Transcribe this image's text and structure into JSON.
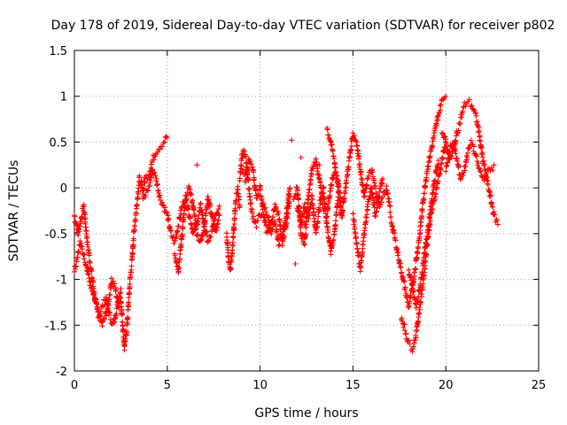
{
  "chart_data": {
    "type": "scatter",
    "title": "Day 178 of 2019, Sidereal Day-to-day VTEC variation (SDTVAR) for receiver p802",
    "xlabel": "GPS time / hours",
    "ylabel": "SDTVAR / TECUs",
    "xlim": [
      0,
      25
    ],
    "ylim": [
      -2,
      1.5
    ],
    "xticks": [
      0,
      5,
      10,
      15,
      20,
      25
    ],
    "xtick_labels": [
      "0",
      "5",
      "10",
      "15",
      "20",
      "25"
    ],
    "yticks": [
      -2,
      -1.5,
      -1,
      -0.5,
      0,
      0.5,
      1,
      1.5
    ],
    "ytick_labels": [
      "-2",
      "-1.5",
      "-1",
      "-0.5",
      "0",
      "0.5",
      "1",
      "1.5"
    ],
    "grid": true,
    "marker": "+",
    "color": "#ff0000",
    "series": [
      {
        "name": "SDTVAR",
        "tracks": [
          {
            "x": [
              0.0,
              0.2,
              0.4,
              0.5,
              0.7,
              0.9,
              1.1,
              1.3,
              1.5,
              1.7,
              1.9,
              2.1,
              2.3,
              2.5
            ],
            "y": [
              -0.3,
              -0.5,
              -0.3,
              -0.2,
              -0.6,
              -0.9,
              -1.2,
              -1.4,
              -1.3,
              -1.2,
              -1.4,
              -1.5,
              -1.3,
              -1.1
            ]
          },
          {
            "x": [
              0.0,
              0.3,
              0.6,
              0.9,
              1.2,
              1.5,
              1.8,
              2.0,
              2.2,
              2.4
            ],
            "y": [
              -0.9,
              -0.6,
              -0.8,
              -1.1,
              -1.3,
              -1.5,
              -1.3,
              -1.0,
              -1.1,
              -1.3
            ]
          },
          {
            "x": [
              2.5,
              2.6,
              2.7,
              2.8,
              2.9,
              3.0,
              3.1,
              3.2,
              3.3,
              3.4,
              3.5,
              3.6,
              3.7,
              3.8
            ],
            "y": [
              -1.2,
              -1.5,
              -1.75,
              -1.6,
              -1.3,
              -1.0,
              -0.8,
              -0.5,
              -0.3,
              -0.1,
              0.1,
              0.05,
              -0.1,
              0.1
            ]
          },
          {
            "x": [
              3.8,
              4.0,
              4.2,
              4.4,
              4.6,
              4.8,
              5.0
            ],
            "y": [
              0.1,
              0.15,
              0.3,
              0.4,
              0.45,
              0.5,
              0.55
            ]
          },
          {
            "x": [
              3.8,
              4.0,
              4.2,
              4.4,
              4.6,
              4.8,
              5.0,
              5.2,
              5.4,
              5.6,
              5.8,
              6.0,
              6.2,
              6.4,
              6.6,
              6.8,
              7.0,
              7.2,
              7.4,
              7.6,
              7.8
            ],
            "y": [
              -0.1,
              0.0,
              0.2,
              0.1,
              -0.1,
              -0.2,
              -0.3,
              -0.5,
              -0.6,
              -0.4,
              -0.2,
              -0.1,
              -0.3,
              -0.5,
              -0.4,
              -0.2,
              -0.4,
              -0.6,
              -0.5,
              -0.3,
              -0.2
            ]
          },
          {
            "x": [
              5.4,
              5.6,
              5.8,
              6.0,
              6.2,
              6.4,
              6.6,
              6.8,
              7.0,
              7.2,
              7.4,
              7.6,
              7.8
            ],
            "y": [
              -0.7,
              -0.9,
              -0.5,
              -0.1,
              0.0,
              -0.2,
              -0.5,
              -0.6,
              -0.4,
              -0.1,
              -0.3,
              -0.5,
              -0.3
            ]
          },
          {
            "x": [
              8.2,
              8.3,
              8.4,
              8.5,
              8.6,
              8.7,
              8.8,
              8.9
            ],
            "y": [
              -0.5,
              -0.8,
              -0.9,
              -0.7,
              -0.4,
              -0.1,
              0.0,
              -0.2
            ]
          },
          {
            "x": [
              8.9,
              9.0,
              9.1,
              9.2,
              9.3,
              9.4,
              9.5,
              9.6,
              9.8,
              10.0,
              10.2,
              10.4,
              10.6,
              10.8,
              11.0,
              11.2,
              11.4,
              11.6
            ],
            "y": [
              0.1,
              0.3,
              0.4,
              0.35,
              0.2,
              0.0,
              -0.2,
              -0.3,
              -0.4,
              -0.3,
              -0.2,
              -0.3,
              -0.5,
              -0.4,
              -0.6,
              -0.5,
              -0.3,
              0.0
            ]
          },
          {
            "x": [
              9.0,
              9.2,
              9.4,
              9.6,
              9.8,
              10.0,
              10.2,
              10.4,
              10.6,
              10.8,
              11.0,
              11.2,
              11.4,
              11.6
            ],
            "y": [
              0.2,
              0.1,
              0.3,
              0.2,
              -0.1,
              0.0,
              -0.3,
              -0.5,
              -0.4,
              -0.2,
              -0.3,
              -0.6,
              -0.4,
              -0.1
            ]
          },
          {
            "x": [
              11.8,
              12.0,
              12.2,
              12.4,
              12.6,
              12.8,
              13.0,
              13.2,
              13.4,
              13.6,
              13.8,
              14.0,
              14.2,
              14.4
            ],
            "y": [
              -0.1,
              0.0,
              -0.5,
              -0.6,
              -0.1,
              0.2,
              0.3,
              0.1,
              -0.2,
              -0.3,
              0.0,
              0.2,
              0.1,
              -0.3
            ]
          },
          {
            "x": [
              12.0,
              12.2,
              12.4,
              12.6,
              12.8,
              13.0,
              13.2,
              13.4,
              13.6,
              13.8,
              14.0,
              14.2
            ],
            "y": [
              -0.2,
              -0.4,
              -0.2,
              -0.3,
              -0.1,
              -0.5,
              -0.2,
              0.0,
              -0.4,
              -0.7,
              -0.5,
              -0.1
            ]
          },
          {
            "x": [
              13.6,
              13.8,
              14.0,
              14.2,
              14.4,
              14.6,
              14.8,
              15.0,
              15.2,
              15.4,
              15.6,
              15.8,
              16.0,
              16.2,
              16.4,
              16.6,
              16.8,
              17.0
            ],
            "y": [
              0.65,
              0.5,
              0.3,
              0.0,
              -0.3,
              0.0,
              0.3,
              0.6,
              0.5,
              0.2,
              -0.1,
              0.1,
              0.2,
              0.0,
              -0.2,
              -0.1,
              0.0,
              -0.2
            ]
          },
          {
            "x": [
              15.0,
              15.2,
              15.4,
              15.6,
              15.8,
              16.0,
              16.2,
              16.4,
              16.6
            ],
            "y": [
              -0.3,
              -0.6,
              -0.9,
              -0.5,
              -0.2,
              0.0,
              -0.3,
              -0.1,
              0.1
            ]
          },
          {
            "x": [
              17.0,
              17.2,
              17.4,
              17.6,
              17.8,
              18.0,
              18.2,
              18.4,
              18.6,
              18.8,
              19.0,
              19.2,
              19.4,
              19.6,
              19.8,
              20.0
            ],
            "y": [
              -0.3,
              -0.5,
              -0.7,
              -0.9,
              -1.1,
              -1.3,
              -1.1,
              -0.8,
              -0.5,
              -0.1,
              0.2,
              0.4,
              0.6,
              0.8,
              0.95,
              1.0
            ]
          },
          {
            "x": [
              17.6,
              17.8,
              18.0,
              18.2,
              18.4,
              18.6,
              18.8,
              19.0,
              19.2,
              19.4,
              19.6,
              19.8,
              20.0
            ],
            "y": [
              -1.4,
              -1.55,
              -1.7,
              -1.75,
              -1.6,
              -1.3,
              -1.0,
              -0.6,
              -0.3,
              -0.1,
              0.1,
              0.3,
              0.5
            ]
          },
          {
            "x": [
              18.0,
              18.2,
              18.4,
              18.6,
              18.8,
              19.0,
              19.2,
              19.4,
              19.6
            ],
            "y": [
              -0.9,
              -1.1,
              -1.3,
              -1.1,
              -0.8,
              -0.5,
              -0.2,
              0.1,
              0.3
            ]
          },
          {
            "x": [
              19.8,
              20.0,
              20.2,
              20.4,
              20.6,
              20.8,
              21.0,
              21.2,
              21.4,
              21.6,
              21.8,
              22.0,
              22.2,
              22.4,
              22.6,
              22.8
            ],
            "y": [
              0.6,
              0.5,
              0.3,
              0.4,
              0.6,
              0.75,
              0.9,
              0.95,
              0.9,
              0.8,
              0.6,
              0.3,
              0.1,
              -0.1,
              -0.3,
              -0.4
            ]
          },
          {
            "x": [
              20.0,
              20.2,
              20.4,
              20.6,
              20.8,
              21.0,
              21.2,
              21.4,
              21.6,
              21.8,
              22.0,
              22.2,
              22.4,
              22.6
            ],
            "y": [
              0.2,
              0.4,
              0.5,
              0.3,
              0.1,
              0.2,
              0.4,
              0.5,
              0.35,
              0.2,
              0.1,
              0.15,
              0.2,
              0.25
            ]
          },
          {
            "x": [
              4.9,
              6.6,
              9.3,
              11.7,
              12.2,
              11.9,
              12.4,
              13.2
            ],
            "y": [
              0.55,
              0.25,
              0.1,
              0.52,
              0.33,
              -0.83,
              -0.4,
              0.25
            ]
          }
        ]
      }
    ]
  }
}
